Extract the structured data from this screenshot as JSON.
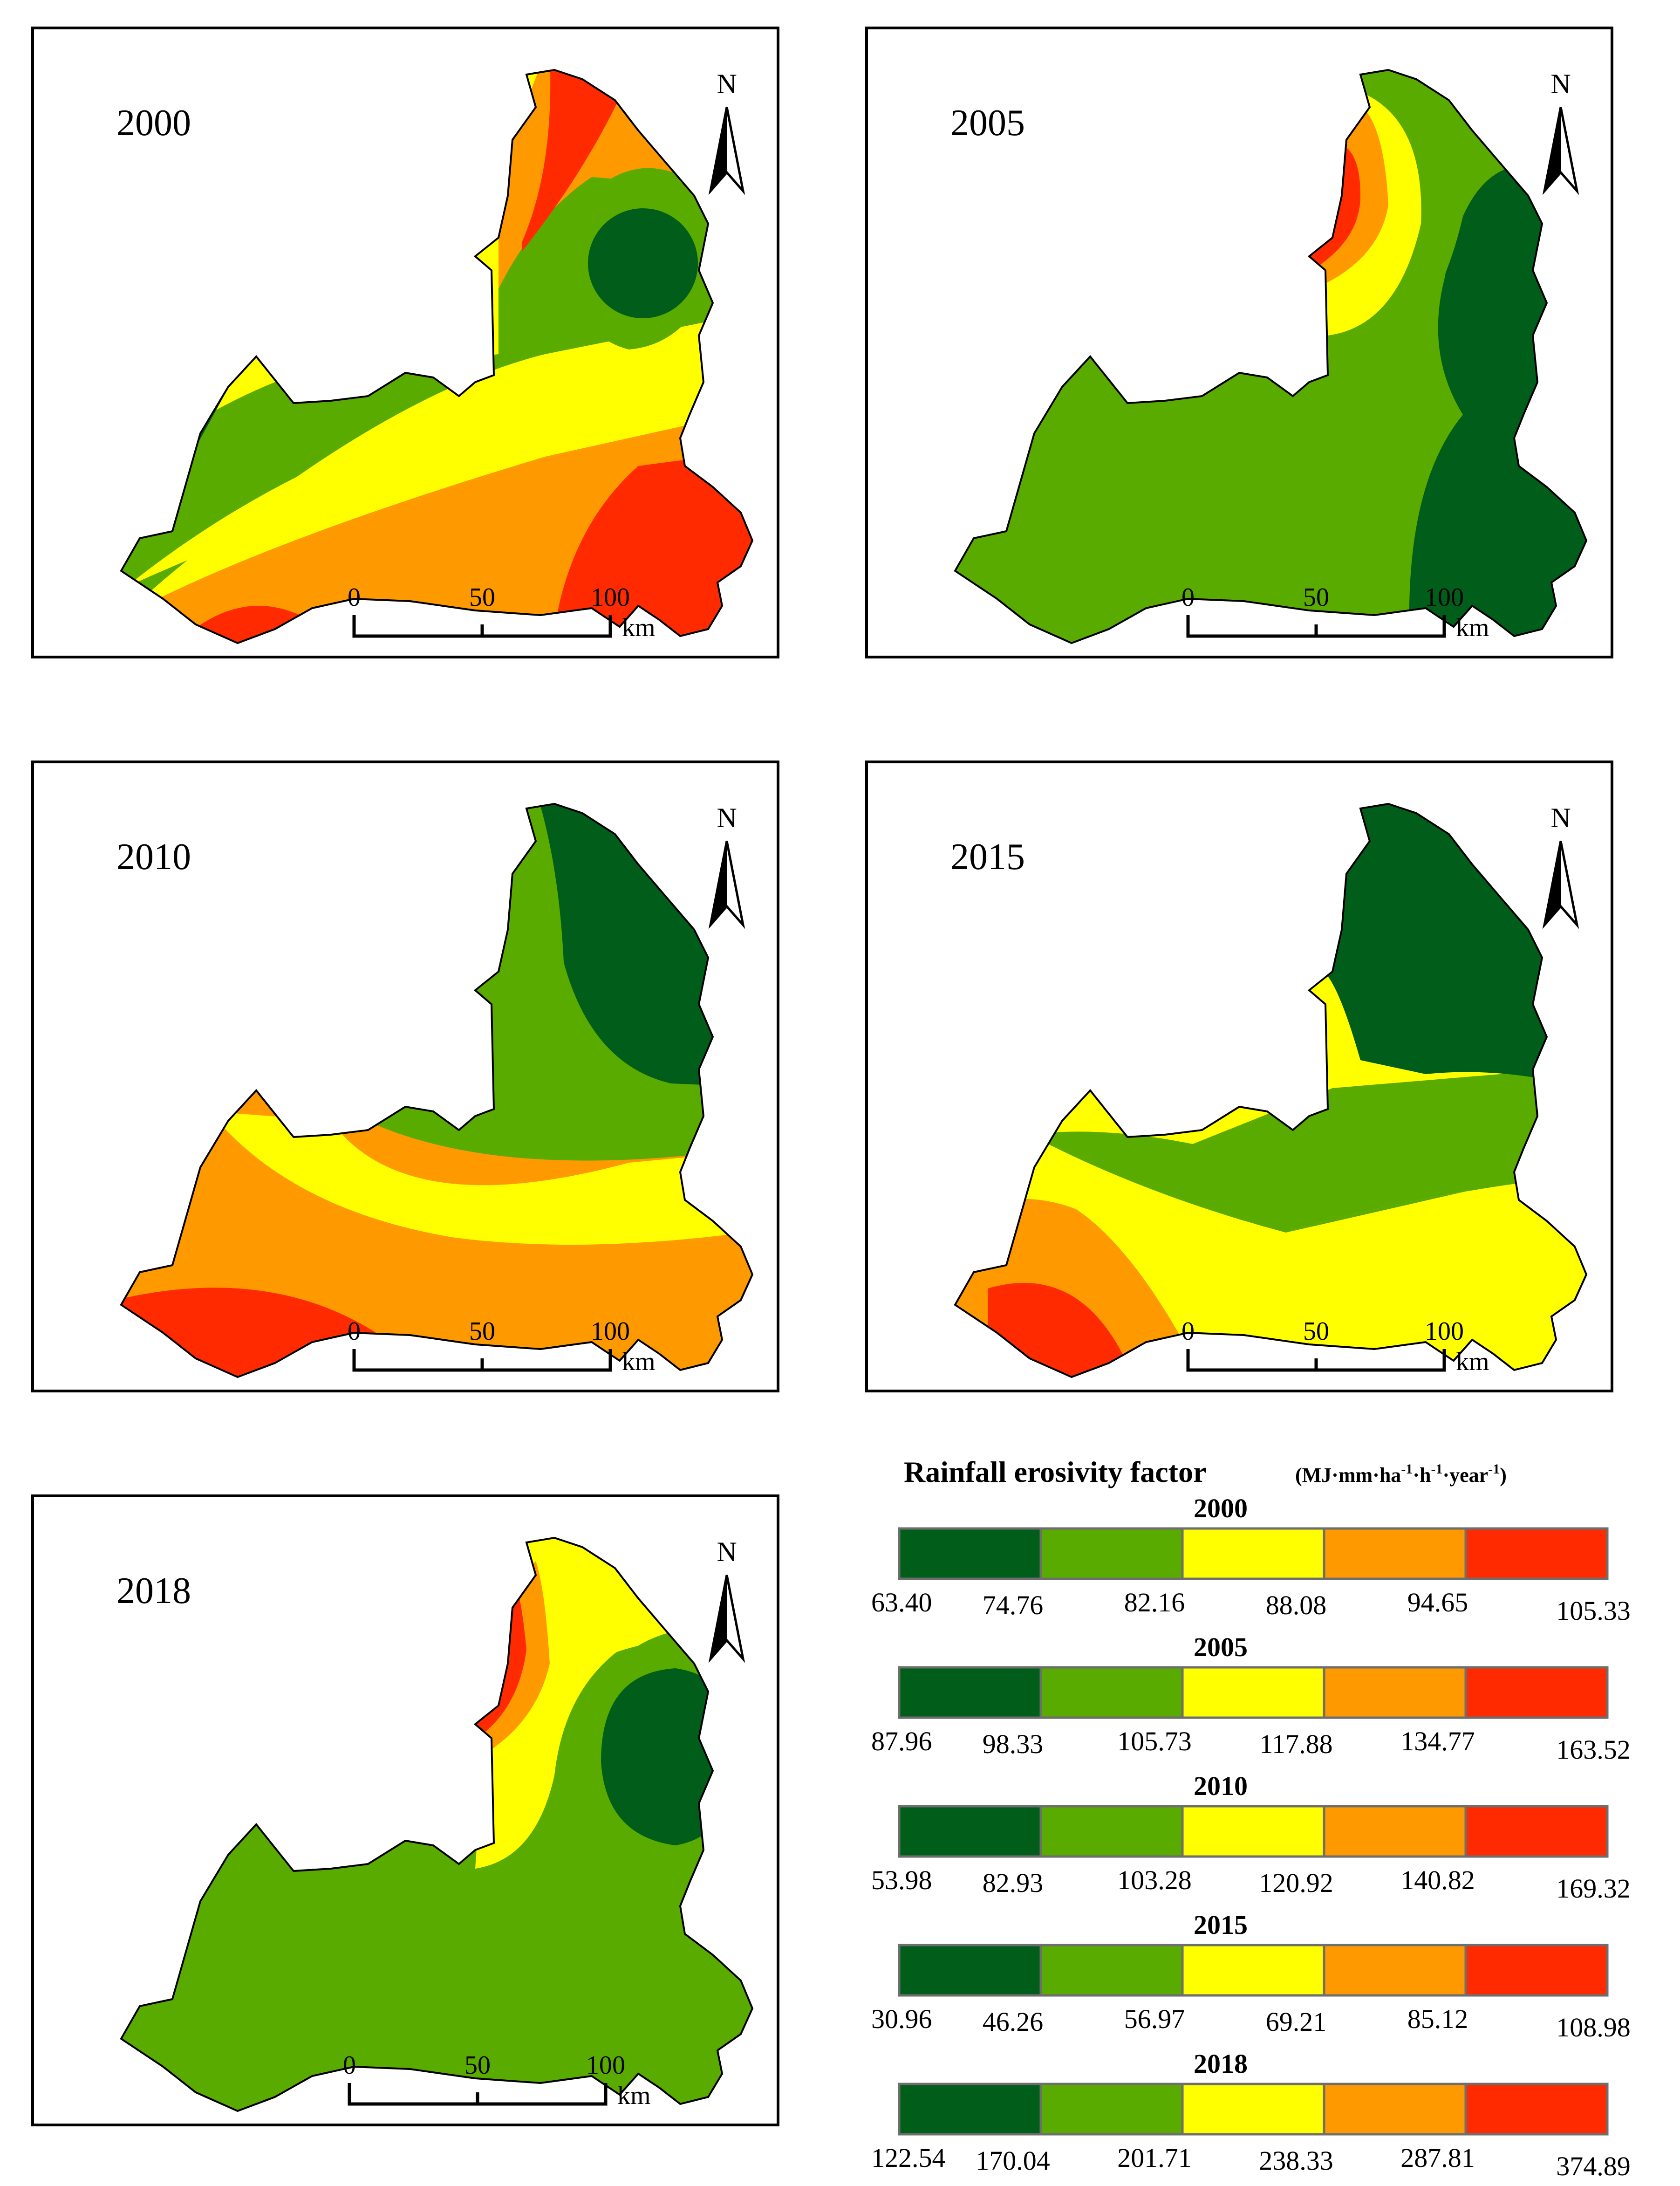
{
  "figure": {
    "colors": [
      "#005e1a",
      "#5aab00",
      "#ffff00",
      "#ff9900",
      "#ff2a00"
    ],
    "north_label": "N",
    "scale_ticks": [
      "0",
      "50",
      "100"
    ],
    "scale_unit": "km"
  },
  "maps": [
    {
      "year": "2000"
    },
    {
      "year": "2005"
    },
    {
      "year": "2010"
    },
    {
      "year": "2015"
    },
    {
      "year": "2018"
    }
  ],
  "legend": {
    "title": "Rainfall erosivity factor",
    "unit_main": "MJ·mm·ha",
    "unit_exp1": "-1",
    "unit_h": "·h",
    "unit_exp2": "-1",
    "unit_year": "·year",
    "unit_exp3": "-1",
    "unit_open": "(",
    "unit_close": ")",
    "bars": [
      {
        "year": "2000",
        "breaks": [
          "63.40",
          "74.76",
          "82.16",
          "88.08",
          "94.65",
          "105.33"
        ]
      },
      {
        "year": "2005",
        "breaks": [
          "87.96",
          "98.33",
          "105.73",
          "117.88",
          "134.77",
          "163.52"
        ]
      },
      {
        "year": "2010",
        "breaks": [
          "53.98",
          "82.93",
          "103.28",
          "120.92",
          "140.82",
          "169.32"
        ]
      },
      {
        "year": "2015",
        "breaks": [
          "30.96",
          "46.26",
          "56.97",
          "69.21",
          "85.12",
          "108.98"
        ]
      },
      {
        "year": "2018",
        "breaks": [
          "122.54",
          "170.04",
          "201.71",
          "238.33",
          "287.81",
          "374.89"
        ]
      }
    ]
  }
}
